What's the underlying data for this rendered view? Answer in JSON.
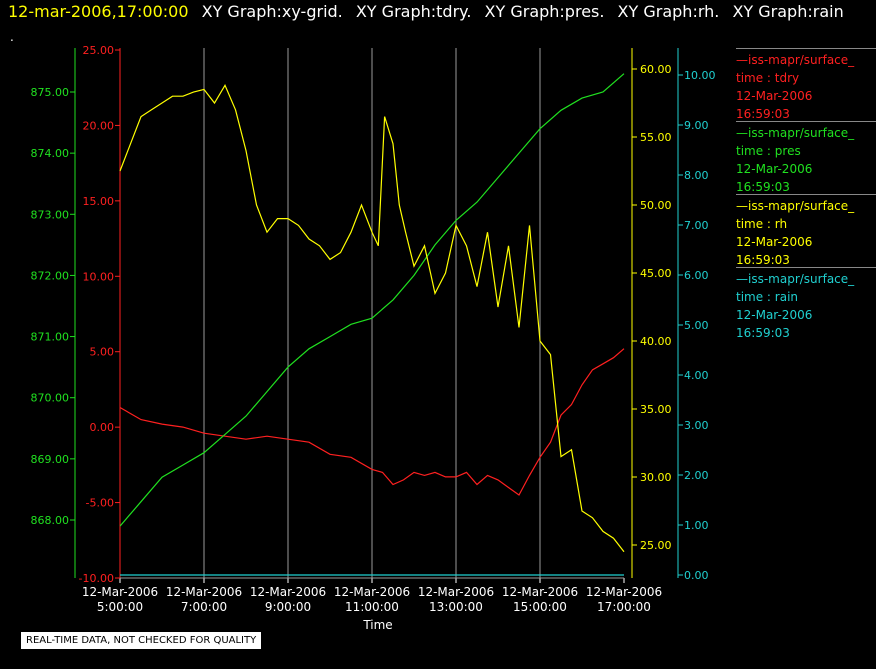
{
  "header": {
    "timestamp": "12-mar-2006,17:00:00",
    "tabs": [
      "XY Graph:xy-grid.",
      "XY Graph:tdry.",
      "XY Graph:pres.",
      "XY Graph:rh.",
      "XY Graph:rain"
    ]
  },
  "marker": ".",
  "legend": [
    {
      "name": "iss-mapr/surface_",
      "var": "time : tdry",
      "date": "12-Mar-2006",
      "time": "16:59:03",
      "color": "#ff2020"
    },
    {
      "name": "iss-mapr/surface_",
      "var": "time : pres",
      "date": "12-Mar-2006",
      "time": "16:59:03",
      "color": "#20e020"
    },
    {
      "name": "iss-mapr/surface_",
      "var": "time : rh",
      "date": "12-Mar-2006",
      "time": "16:59:03",
      "color": "#ffff00"
    },
    {
      "name": "iss-mapr/surface_",
      "var": "time : rain",
      "date": "12-Mar-2006",
      "time": "16:59:03",
      "color": "#20d0d0"
    }
  ],
  "notice": "REAL-TIME DATA, NOT CHECKED FOR QUALITY",
  "chart_data": {
    "type": "line",
    "xlabel": "Time",
    "x_ticks": [
      {
        "date": "12-Mar-2006",
        "time": "5:00:00"
      },
      {
        "date": "12-Mar-2006",
        "time": "7:00:00"
      },
      {
        "date": "12-Mar-2006",
        "time": "9:00:00"
      },
      {
        "date": "12-Mar-2006",
        "time": "11:00:00"
      },
      {
        "date": "12-Mar-2006",
        "time": "13:00:00"
      },
      {
        "date": "12-Mar-2006",
        "time": "15:00:00"
      },
      {
        "date": "12-Mar-2006",
        "time": "17:00:00"
      }
    ],
    "xlim": [
      "12-Mar-2006 5:00:00",
      "12-Mar-2006 17:00:00"
    ],
    "grid": "vertical",
    "axes": {
      "tdry": {
        "color": "#ff2020",
        "ylim": [
          -10,
          25
        ],
        "ticks": [
          "25.00",
          "20.00",
          "15.00",
          "10.00",
          "5.00",
          "0.00",
          "-5.00",
          "-10.00"
        ]
      },
      "pres": {
        "color": "#20e020",
        "ylim": [
          867.0,
          875.0
        ],
        "ticks": [
          "875.00",
          "874.00",
          "873.00",
          "872.00",
          "871.00",
          "870.00",
          "869.00",
          "868.00"
        ]
      },
      "rh": {
        "color": "#ffff00",
        "ylim": [
          22.0,
          61.0
        ],
        "ticks": [
          "60.00",
          "55.00",
          "50.00",
          "45.00",
          "40.00",
          "35.00",
          "30.00",
          "25.00"
        ]
      },
      "rain": {
        "color": "#20d0d0",
        "ylim": [
          0,
          10.0
        ],
        "ticks": [
          "10.00",
          "9.00",
          "8.00",
          "7.00",
          "6.00",
          "5.00",
          "4.00",
          "3.00",
          "2.00",
          "1.00",
          "0.00"
        ]
      }
    },
    "series": [
      {
        "key": "tdry",
        "x_hours": [
          5.0,
          5.5,
          6.0,
          6.5,
          7.0,
          7.5,
          8.0,
          8.5,
          9.0,
          9.5,
          10.0,
          10.5,
          11.0,
          11.25,
          11.5,
          11.75,
          12.0,
          12.25,
          12.5,
          12.75,
          13.0,
          13.25,
          13.5,
          13.75,
          14.0,
          14.25,
          14.5,
          14.75,
          15.0,
          15.25,
          15.5,
          15.75,
          16.0,
          16.25,
          16.5,
          16.75,
          17.0
        ],
        "values": [
          1.3,
          0.5,
          0.2,
          0.0,
          -0.4,
          -0.6,
          -0.8,
          -0.6,
          -0.8,
          -1.0,
          -1.8,
          -2.0,
          -2.8,
          -3.0,
          -3.8,
          -3.5,
          -3.0,
          -3.2,
          -3.0,
          -3.3,
          -3.3,
          -3.0,
          -3.8,
          -3.2,
          -3.5,
          -4.0,
          -4.5,
          -3.2,
          -2.0,
          -1.0,
          0.8,
          1.5,
          2.8,
          3.8,
          4.2,
          4.6,
          5.2
        ]
      },
      {
        "key": "pres",
        "x_hours": [
          5.0,
          5.5,
          6.0,
          6.5,
          7.0,
          7.5,
          8.0,
          8.5,
          9.0,
          9.5,
          10.0,
          10.5,
          11.0,
          11.5,
          12.0,
          12.5,
          13.0,
          13.5,
          14.0,
          14.5,
          15.0,
          15.5,
          16.0,
          16.5,
          17.0
        ],
        "values": [
          867.9,
          868.3,
          868.7,
          868.9,
          869.1,
          869.4,
          869.7,
          870.1,
          870.5,
          870.8,
          871.0,
          871.2,
          871.3,
          871.6,
          872.0,
          872.5,
          872.9,
          873.2,
          873.6,
          874.0,
          874.4,
          874.7,
          874.9,
          875.0,
          875.3
        ]
      },
      {
        "key": "rh",
        "x_hours": [
          5.0,
          5.25,
          5.5,
          5.75,
          6.0,
          6.25,
          6.5,
          6.75,
          7.0,
          7.25,
          7.5,
          7.75,
          8.0,
          8.25,
          8.5,
          8.75,
          9.0,
          9.25,
          9.5,
          9.75,
          10.0,
          10.25,
          10.5,
          10.75,
          11.0,
          11.15,
          11.3,
          11.5,
          11.65,
          11.8,
          12.0,
          12.25,
          12.5,
          12.75,
          13.0,
          13.25,
          13.5,
          13.75,
          14.0,
          14.25,
          14.5,
          14.75,
          15.0,
          15.25,
          15.5,
          15.75,
          16.0,
          16.25,
          16.5,
          16.75,
          17.0
        ],
        "values": [
          52.5,
          54.5,
          56.5,
          57.0,
          57.5,
          58.0,
          58.0,
          58.3,
          58.5,
          57.5,
          58.8,
          57.0,
          54.0,
          50.0,
          48.0,
          49.0,
          49.0,
          48.5,
          47.5,
          47.0,
          46.0,
          46.5,
          48.0,
          50.0,
          48.0,
          47.0,
          56.5,
          54.5,
          50.0,
          48.0,
          45.5,
          47.0,
          43.5,
          45.0,
          48.5,
          47.0,
          44.0,
          48.0,
          42.5,
          47.0,
          41.0,
          48.5,
          40.0,
          39.0,
          31.5,
          32.0,
          27.5,
          27.0,
          26.0,
          25.5,
          24.5
        ]
      },
      {
        "key": "rain",
        "x_hours": [
          5.0,
          17.0
        ],
        "values": [
          0.0,
          0.0
        ]
      }
    ]
  }
}
